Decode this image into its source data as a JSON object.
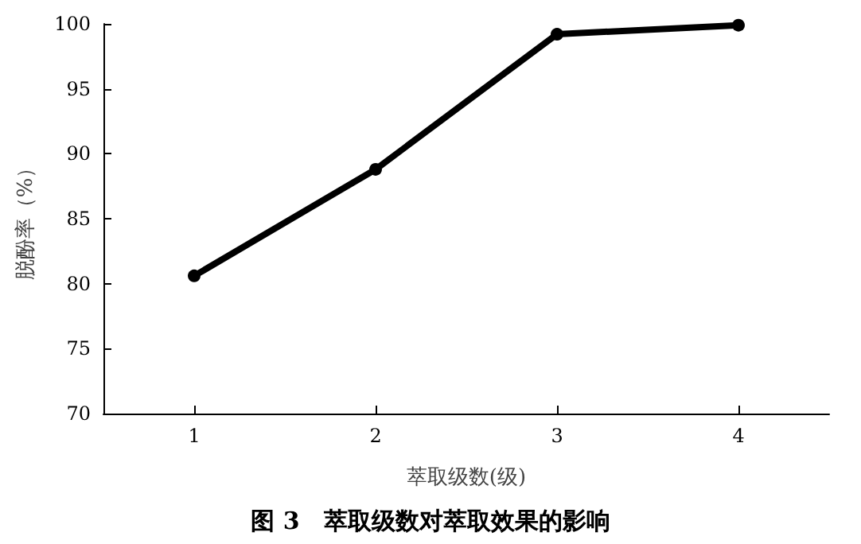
{
  "chart_data": {
    "type": "line",
    "title": "图 3　萃取级数对萃取效果的影响",
    "xlabel": "萃取级数(级)",
    "ylabel": "脱酚率（%）",
    "categories": [
      "1",
      "2",
      "3",
      "4"
    ],
    "series": [
      {
        "color": "#000000",
        "values": [
          80.6,
          88.8,
          99.2,
          99.9
        ]
      }
    ],
    "ylim": [
      70,
      100
    ],
    "yticks": [
      70,
      75,
      80,
      85,
      90,
      95,
      100
    ],
    "grid": false,
    "marker": "circle",
    "line_style": "solid"
  }
}
